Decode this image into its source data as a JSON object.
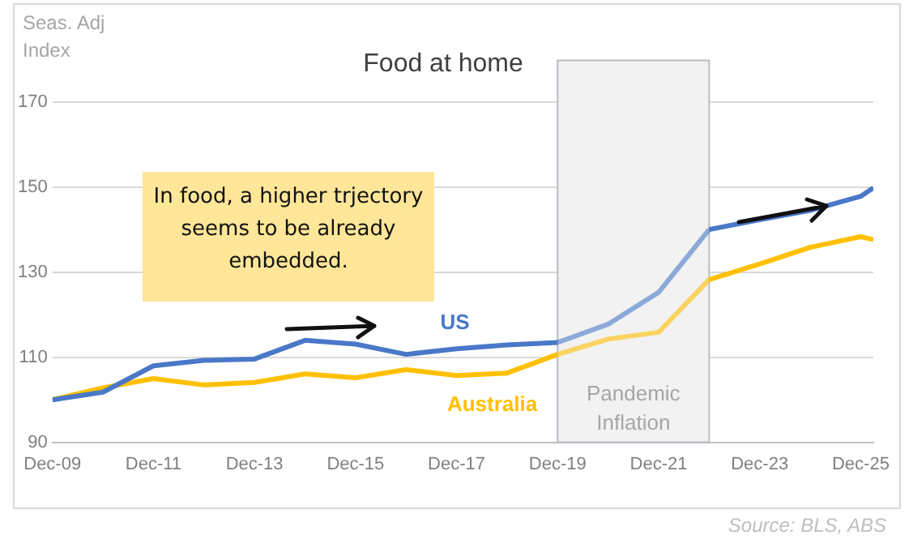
{
  "chart_data": {
    "type": "line",
    "title": "Food at home",
    "ylabel": "Seas. Adj Index",
    "x": [
      "2009-12",
      "2010-12",
      "2011-12",
      "2012-12",
      "2013-12",
      "2014-12",
      "2015-12",
      "2016-12",
      "2017-12",
      "2018-12",
      "2019-12",
      "2020-12",
      "2021-12",
      "2022-12",
      "2023-12",
      "2024-12",
      "2025-12",
      "2026-03"
    ],
    "series": [
      {
        "name": "US",
        "color": "#4a78c8",
        "values": [
          100,
          101.8,
          108,
          109.3,
          109.6,
          114,
          113.1,
          110.7,
          112,
          112.9,
          113.5,
          117.8,
          125.3,
          140.1,
          142.4,
          144.6,
          147.9,
          149.9
        ]
      },
      {
        "name": "Australia",
        "color": "#ffc000",
        "values": [
          100,
          102.8,
          105,
          103.5,
          104.1,
          106.1,
          105.2,
          107.1,
          105.7,
          106.3,
          110.7,
          114.3,
          115.9,
          128.3,
          132,
          135.9,
          138.4,
          137.7
        ]
      }
    ],
    "xlim": [
      "2009-12",
      "2026-03"
    ],
    "xticks": [
      {
        "value": "2009-12",
        "label": "Dec-09"
      },
      {
        "value": "2011-12",
        "label": "Dec-11"
      },
      {
        "value": "2013-12",
        "label": "Dec-13"
      },
      {
        "value": "2015-12",
        "label": "Dec-15"
      },
      {
        "value": "2017-12",
        "label": "Dec-17"
      },
      {
        "value": "2019-12",
        "label": "Dec-19"
      },
      {
        "value": "2021-12",
        "label": "Dec-21"
      },
      {
        "value": "2023-12",
        "label": "Dec-23"
      },
      {
        "value": "2025-12",
        "label": "Dec-25"
      }
    ],
    "ylim": [
      90,
      170
    ],
    "yticks": [
      90,
      110,
      130,
      150,
      170
    ],
    "bands": [
      {
        "axis": "x",
        "from": "2019-12",
        "to": "2022-12",
        "label": "Pandemic Inflation",
        "color": "#f2f2f2"
      }
    ],
    "annotations": [
      "In food, a higher trjectory seems to be already embedded.",
      "Source: BLS, ABS"
    ],
    "grid": "y",
    "legend": false,
    "marker": "none",
    "line_style": "solid"
  }
}
